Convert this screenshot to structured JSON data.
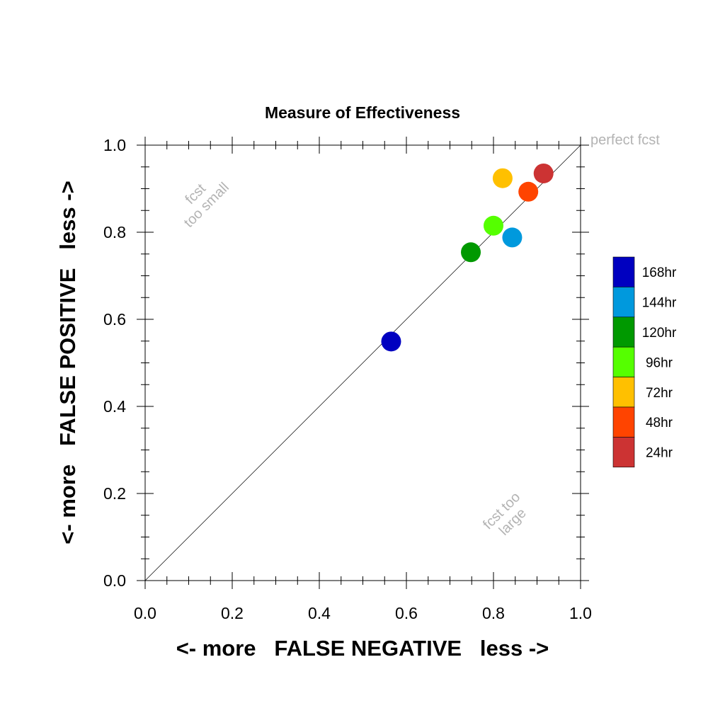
{
  "chart_data": {
    "type": "scatter",
    "title": "Measure of Effectiveness",
    "xlabel": "<- more   FALSE NEGATIVE   less ->",
    "ylabel": "<- more   FALSE POSITIVE   less ->",
    "xlim": [
      0.0,
      1.0
    ],
    "ylim": [
      0.0,
      1.0
    ],
    "xticks": [
      "0.0",
      "0.2",
      "0.4",
      "0.6",
      "0.8",
      "1.0"
    ],
    "yticks": [
      "0.0",
      "0.2",
      "0.4",
      "0.6",
      "0.8",
      "1.0"
    ],
    "grid": false,
    "legend_position": "right",
    "reference_line": {
      "from": [
        0,
        0
      ],
      "to": [
        1,
        1
      ]
    },
    "annotations": {
      "perfect": "perfect fcst",
      "small_line1": "fcst",
      "small_line2": "too small",
      "large_line1": "fcst too",
      "large_line2": "large"
    },
    "series": [
      {
        "name": "168hr",
        "color": "#0000c0",
        "x": 0.565,
        "y": 0.549
      },
      {
        "name": "144hr",
        "color": "#0099dd",
        "x": 0.843,
        "y": 0.788
      },
      {
        "name": "120hr",
        "color": "#009900",
        "x": 0.748,
        "y": 0.754
      },
      {
        "name": "96hr",
        "color": "#55ff00",
        "x": 0.8,
        "y": 0.815
      },
      {
        "name": "72hr",
        "color": "#ffc000",
        "x": 0.821,
        "y": 0.924
      },
      {
        "name": "48hr",
        "color": "#ff4400",
        "x": 0.88,
        "y": 0.893
      },
      {
        "name": "24hr",
        "color": "#cc3333",
        "x": 0.915,
        "y": 0.935
      }
    ]
  }
}
